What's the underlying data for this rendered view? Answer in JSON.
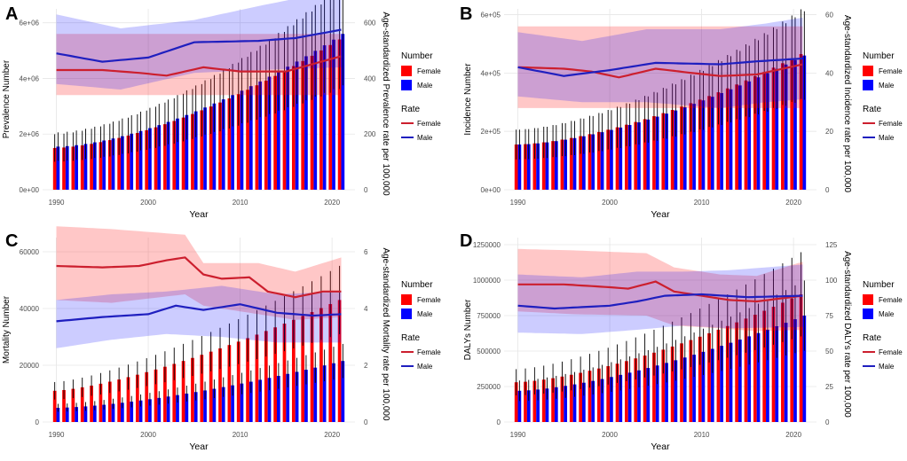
{
  "colors": {
    "female": "#ff0000",
    "male": "#0000ff",
    "female_line": "#cc1f2e",
    "male_line": "#1f1fbf",
    "female_band": "rgba(255,0,0,0.22)",
    "male_band": "rgba(0,0,255,0.20)",
    "grid": "#e6e6e6",
    "error_bar": "#000000"
  },
  "legend_text": {
    "number_title": "Number",
    "rate_title": "Rate",
    "female": "Female",
    "male": "Male"
  },
  "chart_data": [
    {
      "panel_label": "A",
      "type": "bar+line",
      "xlabel": "Year",
      "ylabel_left": "Prevalence Number",
      "ylabel_right": "Age-standardized Prevalence rate per 100,000",
      "left_ticks": [
        "0e+00",
        "2e+06",
        "4e+06",
        "6e+06"
      ],
      "left_tick_values": [
        0,
        2000000,
        4000000,
        6000000
      ],
      "left_max": 6500000,
      "right_ticks": [
        "0",
        "200",
        "400",
        "600"
      ],
      "right_tick_values": [
        0,
        200,
        400,
        600
      ],
      "right_max": 650,
      "x_ticks": [
        "1990",
        "2000",
        "2010",
        "2020"
      ],
      "years": {
        "start": 1990,
        "end": 2021
      },
      "bars_female": {
        "start": 1500000,
        "end": 5400000,
        "power": 1.6
      },
      "bars_male": {
        "start": 1550000,
        "end": 5600000,
        "power": 1.6
      },
      "bar_err_frac": 0.33,
      "rate_female": {
        "points": [
          [
            1990,
            430
          ],
          [
            1995,
            430
          ],
          [
            1999,
            420
          ],
          [
            2002,
            410
          ],
          [
            2006,
            440
          ],
          [
            2010,
            425
          ],
          [
            2015,
            425
          ],
          [
            2021,
            480
          ]
        ]
      },
      "rate_male": {
        "points": [
          [
            1990,
            490
          ],
          [
            1995,
            460
          ],
          [
            2000,
            475
          ],
          [
            2005,
            530
          ],
          [
            2012,
            535
          ],
          [
            2016,
            545
          ],
          [
            2021,
            575
          ]
        ]
      },
      "band_female": {
        "upper": 560,
        "lower": 340
      },
      "band_male": {
        "upper_points": [
          [
            1990,
            630
          ],
          [
            1997,
            580
          ],
          [
            2005,
            610
          ],
          [
            2012,
            660
          ],
          [
            2021,
            720
          ]
        ],
        "lower_points": [
          [
            1990,
            380
          ],
          [
            1997,
            360
          ],
          [
            2005,
            420
          ],
          [
            2012,
            430
          ],
          [
            2021,
            440
          ]
        ]
      }
    },
    {
      "panel_label": "B",
      "type": "bar+line",
      "xlabel": "Year",
      "ylabel_left": "Incidence Number",
      "ylabel_right": "Age-standardized Incidence rate per 100,000",
      "left_ticks": [
        "0e+00",
        "2e+05",
        "4e+05",
        "6e+05"
      ],
      "left_tick_values": [
        0,
        200000,
        400000,
        600000
      ],
      "left_max": 620000,
      "right_ticks": [
        "0",
        "20",
        "40",
        "60"
      ],
      "right_tick_values": [
        0,
        20,
        40,
        60
      ],
      "right_max": 62,
      "x_ticks": [
        "1990",
        "2000",
        "2010",
        "2020"
      ],
      "years": {
        "start": 1990,
        "end": 2021
      },
      "bars_female": {
        "start": 155000,
        "end": 465000,
        "power": 1.6
      },
      "bars_male": {
        "start": 155000,
        "end": 460000,
        "power": 1.6
      },
      "bar_err_frac": 0.33,
      "rate_female": {
        "points": [
          [
            1990,
            42
          ],
          [
            1995,
            41.5
          ],
          [
            1998,
            40.5
          ],
          [
            2001,
            38.5
          ],
          [
            2005,
            41.5
          ],
          [
            2009,
            40
          ],
          [
            2012,
            39
          ],
          [
            2016,
            39.5
          ],
          [
            2021,
            43
          ]
        ]
      },
      "rate_male": {
        "points": [
          [
            1990,
            42
          ],
          [
            1995,
            39
          ],
          [
            2000,
            41
          ],
          [
            2005,
            43.5
          ],
          [
            2012,
            43
          ],
          [
            2016,
            44
          ],
          [
            2021,
            45
          ]
        ]
      },
      "band_female": {
        "upper": 56,
        "lower": 28
      },
      "band_male": {
        "upper_points": [
          [
            1990,
            54
          ],
          [
            1997,
            51
          ],
          [
            2004,
            55
          ],
          [
            2012,
            55
          ],
          [
            2017,
            57
          ],
          [
            2021,
            59
          ]
        ],
        "lower_points": [
          [
            1990,
            32
          ],
          [
            1997,
            30
          ],
          [
            2004,
            30
          ],
          [
            2012,
            28
          ],
          [
            2017,
            30
          ],
          [
            2021,
            31
          ]
        ]
      }
    },
    {
      "panel_label": "C",
      "type": "bar+line",
      "xlabel": "Year",
      "ylabel_left": "Mortality Number",
      "ylabel_right": "Age-standardized Mortality rate per 100,000",
      "left_ticks": [
        "0",
        "20000",
        "40000",
        "60000"
      ],
      "left_tick_values": [
        0,
        20000,
        40000,
        60000
      ],
      "left_max": 65000,
      "right_ticks": [
        "0",
        "2",
        "4",
        "6"
      ],
      "right_tick_values": [
        0,
        2,
        4,
        6
      ],
      "right_max": 6.5,
      "x_ticks": [
        "1990",
        "2000",
        "2010",
        "2020"
      ],
      "years": {
        "start": 1990,
        "end": 2021
      },
      "bars_female": {
        "start": 11000,
        "end": 43000,
        "power": 1.4
      },
      "bars_male": {
        "start": 5000,
        "end": 21500,
        "power": 1.5
      },
      "bar_err_frac": 0.28,
      "rate_female": {
        "points": [
          [
            1990,
            5.5
          ],
          [
            1995,
            5.45
          ],
          [
            1999,
            5.5
          ],
          [
            2002,
            5.7
          ],
          [
            2004,
            5.8
          ],
          [
            2006,
            5.2
          ],
          [
            2008,
            5.05
          ],
          [
            2011,
            5.1
          ],
          [
            2013,
            4.6
          ],
          [
            2016,
            4.4
          ],
          [
            2019,
            4.6
          ],
          [
            2021,
            4.6
          ]
        ]
      },
      "rate_male": {
        "points": [
          [
            1990,
            3.55
          ],
          [
            1995,
            3.7
          ],
          [
            2000,
            3.8
          ],
          [
            2003,
            4.1
          ],
          [
            2006,
            3.95
          ],
          [
            2010,
            4.15
          ],
          [
            2014,
            3.85
          ],
          [
            2018,
            3.75
          ],
          [
            2021,
            3.8
          ]
        ]
      },
      "band_female": {
        "upper_points": [
          [
            1990,
            6.9
          ],
          [
            1996,
            6.8
          ],
          [
            2004,
            6.6
          ],
          [
            2006,
            5.6
          ],
          [
            2012,
            5.6
          ],
          [
            2016,
            5.3
          ],
          [
            2021,
            5.8
          ]
        ],
        "lower_points": [
          [
            1990,
            4.3
          ],
          [
            1996,
            4.2
          ],
          [
            2004,
            4.5
          ],
          [
            2006,
            4.1
          ],
          [
            2012,
            3.8
          ],
          [
            2016,
            3.6
          ],
          [
            2021,
            3.7
          ]
        ]
      },
      "band_male": {
        "upper_points": [
          [
            1990,
            4.3
          ],
          [
            1996,
            4.5
          ],
          [
            2002,
            4.6
          ],
          [
            2008,
            4.8
          ],
          [
            2014,
            4.5
          ],
          [
            2021,
            4.6
          ]
        ],
        "lower_points": [
          [
            1990,
            2.6
          ],
          [
            1996,
            2.9
          ],
          [
            2002,
            3.1
          ],
          [
            2008,
            3.0
          ],
          [
            2014,
            2.8
          ],
          [
            2021,
            2.8
          ]
        ]
      }
    },
    {
      "panel_label": "D",
      "type": "bar+line",
      "xlabel": "Year",
      "ylabel_left": "DALYs Number",
      "ylabel_right": "Age-standardized DALYs rate per 100,000",
      "left_ticks": [
        "0",
        "250000",
        "500000",
        "750000",
        "1000000",
        "1250000"
      ],
      "left_tick_values": [
        0,
        250000,
        500000,
        750000,
        1000000,
        1250000
      ],
      "left_max": 1300000,
      "right_ticks": [
        "0",
        "25",
        "50",
        "75",
        "100",
        "125"
      ],
      "right_tick_values": [
        0,
        25,
        50,
        75,
        100,
        125
      ],
      "right_max": 130,
      "x_ticks": [
        "1990",
        "2000",
        "2010",
        "2020"
      ],
      "years": {
        "start": 1990,
        "end": 2021
      },
      "bars_female": {
        "start": 280000,
        "end": 900000,
        "power": 1.5
      },
      "bars_male": {
        "start": 220000,
        "end": 750000,
        "power": 1.5
      },
      "bar_err_frac": 0.33,
      "rate_female": {
        "points": [
          [
            1990,
            97
          ],
          [
            1995,
            97
          ],
          [
            2000,
            95
          ],
          [
            2002,
            94
          ],
          [
            2005,
            99
          ],
          [
            2007,
            92
          ],
          [
            2010,
            89
          ],
          [
            2013,
            86
          ],
          [
            2016,
            85
          ],
          [
            2021,
            89
          ]
        ]
      },
      "rate_male": {
        "points": [
          [
            1990,
            82
          ],
          [
            1994,
            80
          ],
          [
            2000,
            82
          ],
          [
            2003,
            85
          ],
          [
            2006,
            89
          ],
          [
            2010,
            90
          ],
          [
            2015,
            88
          ],
          [
            2021,
            89
          ]
        ]
      },
      "band_female": {
        "upper_points": [
          [
            1990,
            122
          ],
          [
            1996,
            121
          ],
          [
            2004,
            119
          ],
          [
            2007,
            109
          ],
          [
            2012,
            104
          ],
          [
            2016,
            103
          ],
          [
            2021,
            113
          ]
        ],
        "lower_points": [
          [
            1990,
            78
          ],
          [
            1996,
            76
          ],
          [
            2004,
            75
          ],
          [
            2007,
            68
          ],
          [
            2012,
            66
          ],
          [
            2016,
            64
          ],
          [
            2021,
            65
          ]
        ]
      },
      "band_male": {
        "upper_points": [
          [
            1990,
            104
          ],
          [
            1997,
            102
          ],
          [
            2003,
            106
          ],
          [
            2008,
            106
          ],
          [
            2013,
            107
          ],
          [
            2021,
            111
          ]
        ],
        "lower_points": [
          [
            1990,
            63
          ],
          [
            1997,
            62
          ],
          [
            2003,
            65
          ],
          [
            2008,
            68
          ],
          [
            2013,
            66
          ],
          [
            2021,
            67
          ]
        ]
      }
    }
  ]
}
